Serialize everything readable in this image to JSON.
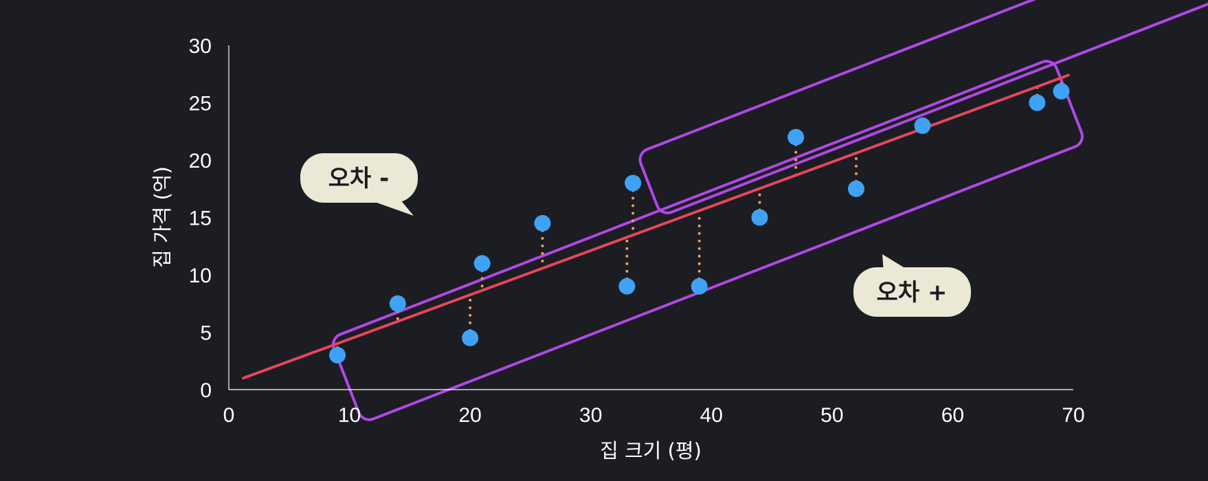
{
  "chart_data": {
    "type": "scatter",
    "title": "",
    "xlabel": "집 크기 (평)",
    "ylabel": "집 가격 (억)",
    "xlim": [
      0,
      70
    ],
    "ylim": [
      0,
      30
    ],
    "x_ticks": [
      0,
      10,
      20,
      30,
      40,
      50,
      60,
      70
    ],
    "y_ticks": [
      0,
      5,
      10,
      15,
      20,
      25,
      30
    ],
    "grid": false,
    "series": [
      {
        "x": [
          9,
          14,
          20,
          21,
          26,
          33,
          33.5,
          39,
          44,
          47,
          52,
          57.5,
          67,
          69
        ],
        "y": [
          3,
          7.5,
          4.5,
          11,
          14.5,
          9,
          18,
          9,
          15,
          22,
          17.5,
          23,
          25,
          26
        ]
      }
    ],
    "regression_line": {
      "x": [
        1.2,
        69.6
      ],
      "y": [
        1.0,
        27.4
      ]
    },
    "residuals": "dotted vertical segments from each point to the regression line",
    "callouts": [
      {
        "label": "오차 -",
        "region": "above the regression line"
      },
      {
        "label": "오차 +",
        "region": "below the regression line"
      }
    ],
    "colors": {
      "background": "#1b1d22",
      "points": "#3fa2f6",
      "regression_line": "#e8455c",
      "residuals": "#f0a05a",
      "error_bands": "#b148e6",
      "callout_fill": "#ebe8d6",
      "callout_text": "#1b1d22",
      "axes": "#ffffff"
    }
  }
}
